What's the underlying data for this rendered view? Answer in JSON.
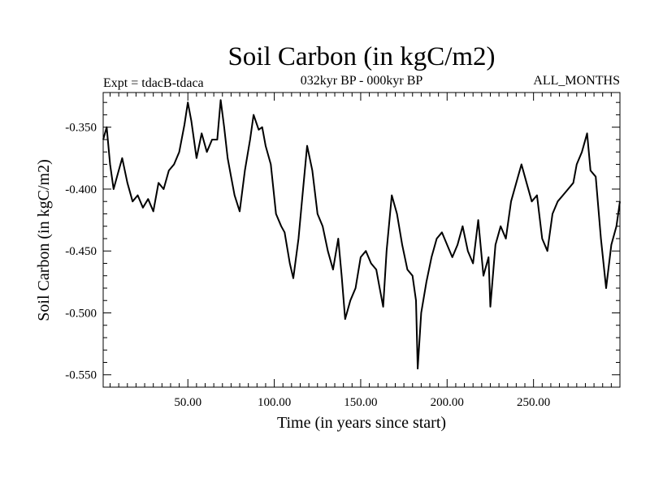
{
  "chart_data": {
    "type": "line",
    "title": "Soil Carbon (in kgC/m2)",
    "subtitle": "032kyr BP - 000kyr BP",
    "experiment_label": "Expt = tdacB-tdaca",
    "months_label": "ALL_MONTHS",
    "xlabel": "Time (in years since start)",
    "ylabel": "Soil Carbon (in kgC/m2)",
    "xlim": [
      1,
      300
    ],
    "ylim": [
      -0.56,
      -0.322
    ],
    "x_ticks": [
      50,
      100,
      150,
      200,
      250
    ],
    "x_tick_labels": [
      "50.00",
      "100.00",
      "150.00",
      "200.00",
      "250.00"
    ],
    "y_ticks": [
      -0.35,
      -0.4,
      -0.45,
      -0.5,
      -0.55
    ],
    "y_tick_labels": [
      "-0.350",
      "-0.400",
      "-0.450",
      "-0.500",
      "-0.550"
    ],
    "line_color": "#000000",
    "series": [
      {
        "name": "Soil Carbon",
        "x": [
          1,
          3,
          5,
          7,
          10,
          12,
          15,
          18,
          21,
          24,
          27,
          30,
          33,
          36,
          39,
          42,
          45,
          48,
          50,
          52,
          55,
          58,
          61,
          64,
          67,
          69,
          71,
          73,
          75,
          77,
          80,
          83,
          86,
          88,
          91,
          93,
          95,
          98,
          101,
          104,
          106,
          109,
          111,
          114,
          116,
          119,
          122,
          125,
          128,
          131,
          134,
          137,
          139,
          141,
          144,
          147,
          150,
          153,
          156,
          159,
          161,
          163,
          165,
          168,
          171,
          174,
          177,
          180,
          182,
          183,
          185,
          188,
          191,
          194,
          197,
          200,
          203,
          206,
          209,
          212,
          215,
          218,
          221,
          224,
          225,
          228,
          231,
          234,
          237,
          240,
          243,
          246,
          249,
          252,
          255,
          258,
          261,
          264,
          267,
          270,
          273,
          275,
          278,
          281,
          283,
          286,
          289,
          292,
          295,
          298,
          300
        ],
        "values": [
          -0.36,
          -0.35,
          -0.38,
          -0.4,
          -0.385,
          -0.375,
          -0.395,
          -0.41,
          -0.405,
          -0.415,
          -0.408,
          -0.418,
          -0.395,
          -0.4,
          -0.385,
          -0.38,
          -0.37,
          -0.348,
          -0.33,
          -0.345,
          -0.375,
          -0.355,
          -0.37,
          -0.36,
          -0.36,
          -0.328,
          -0.35,
          -0.375,
          -0.39,
          -0.405,
          -0.418,
          -0.385,
          -0.36,
          -0.34,
          -0.352,
          -0.35,
          -0.365,
          -0.38,
          -0.42,
          -0.43,
          -0.435,
          -0.46,
          -0.472,
          -0.44,
          -0.41,
          -0.365,
          -0.385,
          -0.42,
          -0.43,
          -0.45,
          -0.465,
          -0.44,
          -0.47,
          -0.505,
          -0.49,
          -0.48,
          -0.455,
          -0.45,
          -0.46,
          -0.465,
          -0.48,
          -0.495,
          -0.45,
          -0.405,
          -0.42,
          -0.445,
          -0.465,
          -0.47,
          -0.49,
          -0.545,
          -0.5,
          -0.475,
          -0.455,
          -0.44,
          -0.435,
          -0.445,
          -0.455,
          -0.445,
          -0.43,
          -0.45,
          -0.46,
          -0.425,
          -0.47,
          -0.455,
          -0.495,
          -0.445,
          -0.43,
          -0.44,
          -0.41,
          -0.395,
          -0.38,
          -0.395,
          -0.41,
          -0.405,
          -0.44,
          -0.45,
          -0.42,
          -0.41,
          -0.405,
          -0.4,
          -0.395,
          -0.38,
          -0.37,
          -0.355,
          -0.385,
          -0.39,
          -0.44,
          -0.48,
          -0.445,
          -0.43,
          -0.41
        ]
      }
    ]
  }
}
